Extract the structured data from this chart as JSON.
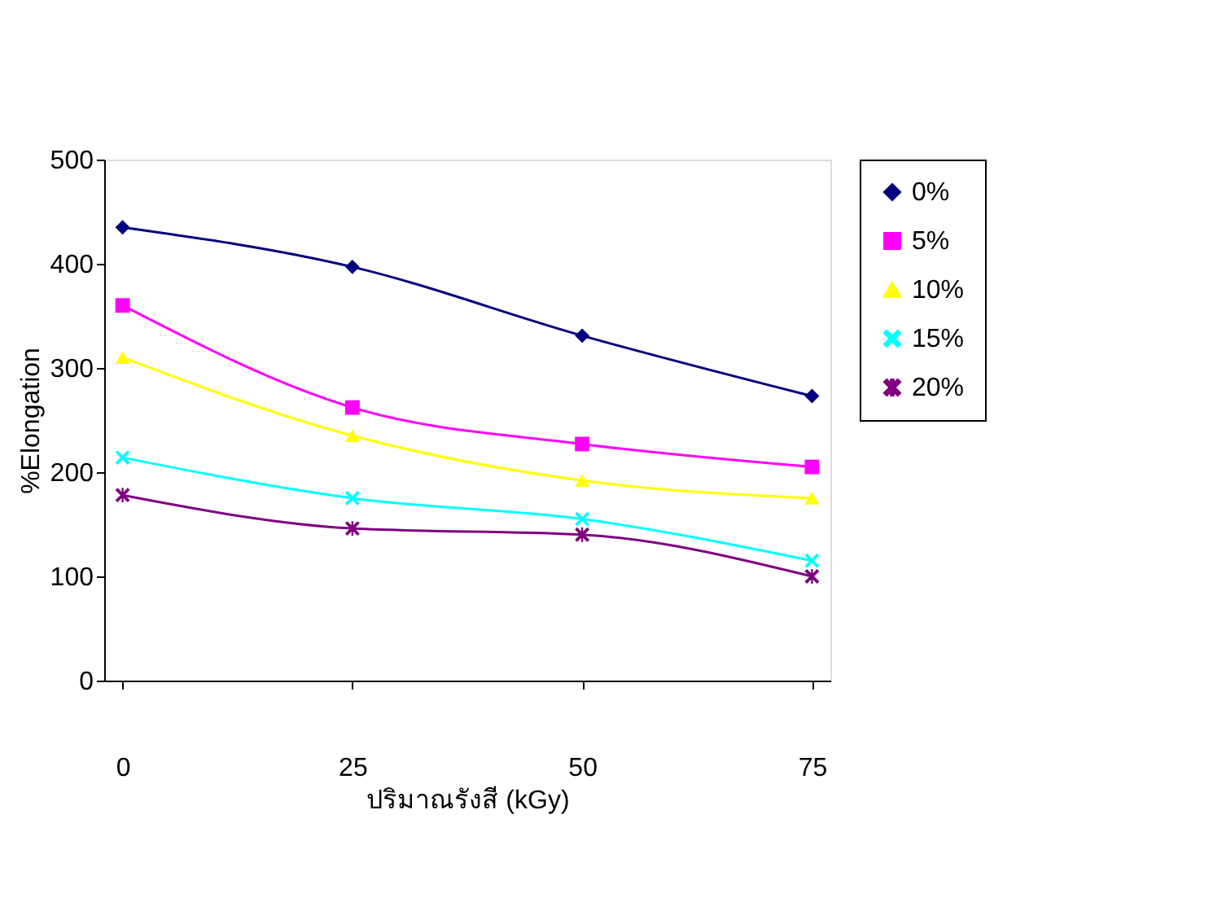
{
  "chart_data": {
    "type": "line",
    "xlabel": "ปริมาณรังสี (kGy)",
    "ylabel": "%Elongation",
    "x": [
      0,
      25,
      50,
      75
    ],
    "xlim": [
      -2,
      77
    ],
    "xticks": [
      0,
      25,
      50,
      75
    ],
    "ylim": [
      0,
      500
    ],
    "yticks": [
      0,
      100,
      200,
      300,
      400,
      500
    ],
    "grid": false,
    "legend": "top right",
    "series": [
      {
        "name": "0%",
        "color": "#000080",
        "marker": "diamond",
        "values": [
          435,
          397,
          331,
          273
        ]
      },
      {
        "name": "5%",
        "color": "#ff00ff",
        "marker": "square",
        "values": [
          360,
          262,
          227,
          205
        ]
      },
      {
        "name": "10%",
        "color": "#ffff00",
        "marker": "triangle",
        "values": [
          310,
          235,
          192,
          175
        ]
      },
      {
        "name": "15%",
        "color": "#00ffff",
        "marker": "cross",
        "values": [
          214,
          175,
          155,
          115
        ]
      },
      {
        "name": "20%",
        "color": "#800080",
        "marker": "star",
        "values": [
          178,
          146,
          140,
          100
        ]
      }
    ]
  }
}
